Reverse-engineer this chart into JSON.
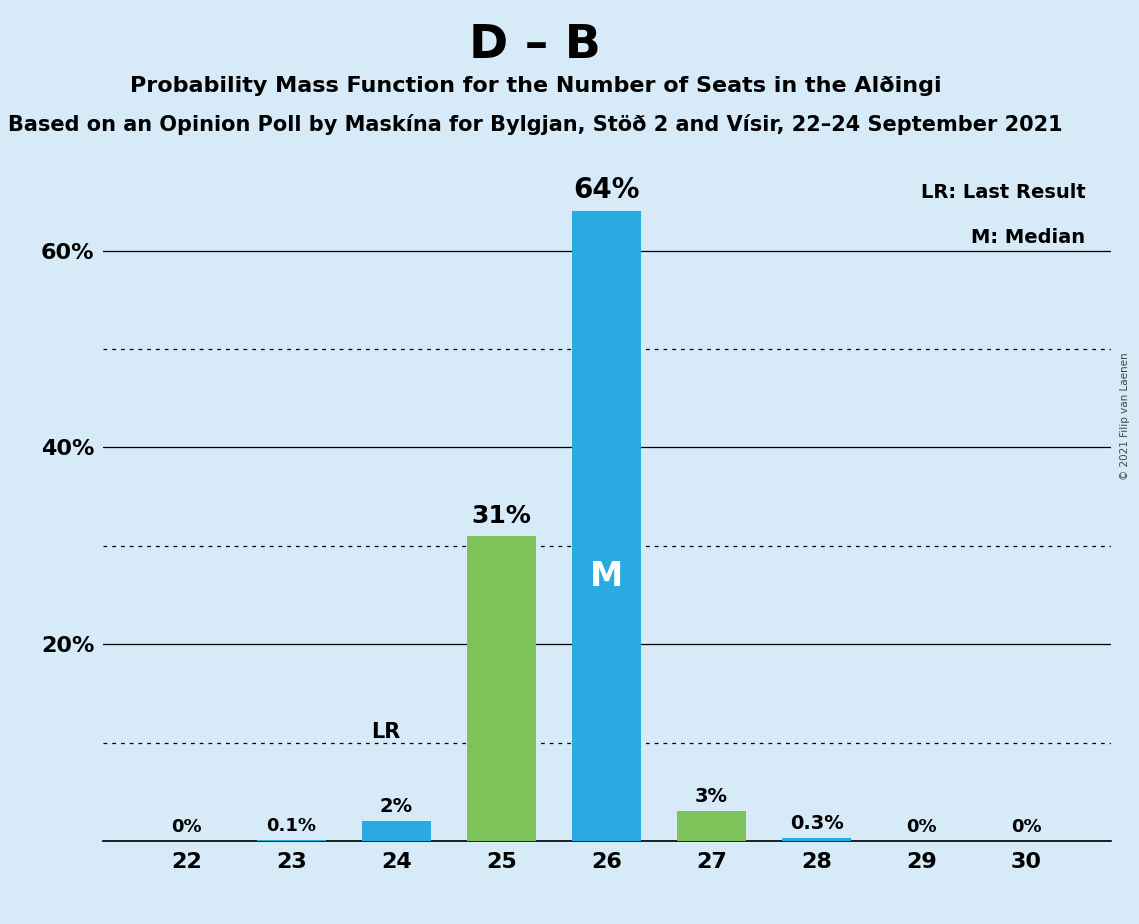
{
  "title_main": "D – B",
  "title_sub1": "Probability Mass Function for the Number of Seats in the Alðingi",
  "title_sub2": "Based on an Opinion Poll by Maskína for Bylgjan, Stöð 2 and Vísir, 22–24 September 2021",
  "copyright": "© 2021 Filip van Laenen",
  "seats": [
    22,
    23,
    24,
    25,
    26,
    27,
    28,
    29,
    30
  ],
  "probabilities": [
    0.0,
    0.1,
    2.0,
    31.0,
    64.0,
    3.0,
    0.3,
    0.0,
    0.0
  ],
  "labels": [
    "0%",
    "0.1%",
    "2%",
    "31%",
    "64%",
    "3%",
    "0.3%",
    "0%",
    "0%"
  ],
  "bar_colors": [
    "#29ABE2",
    "#29ABE2",
    "#29ABE2",
    "#7DC35A",
    "#29ABE2",
    "#7DC35A",
    "#29ABE2",
    "#29ABE2",
    "#29ABE2"
  ],
  "last_result_seat": 24,
  "median_seat": 26,
  "background_color": "#D6EAF8",
  "solid_gridlines": [
    0,
    20,
    40,
    60
  ],
  "dotted_gridlines": [
    10,
    30,
    50
  ],
  "ylabel_ticks": [
    0,
    20,
    40,
    60
  ],
  "ylim": [
    0,
    70
  ],
  "legend_lr": "LR: Last Result",
  "legend_m": "M: Median",
  "median_label_color": "#FFFFFF",
  "lr_label": "LR",
  "m_label": "M",
  "bar_width": 0.65
}
